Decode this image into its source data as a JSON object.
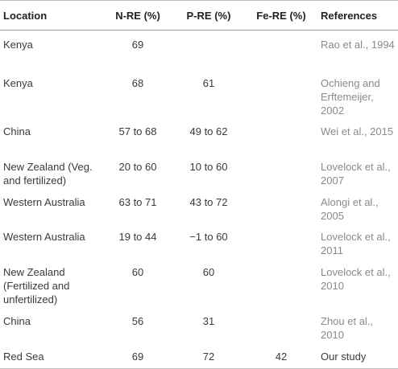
{
  "table": {
    "headers": [
      "Location",
      "N-RE (%)",
      "P-RE (%)",
      "Fe-RE (%)",
      "References"
    ],
    "rows": [
      {
        "location": "Kenya",
        "n_re": "69",
        "p_re": "",
        "fe_re": "",
        "ref": "Rao et al., 1994"
      },
      {
        "location": "Kenya",
        "n_re": "68",
        "p_re": "61",
        "fe_re": "",
        "ref": "Ochieng and Erftemeijer, 2002"
      },
      {
        "location": "China",
        "n_re": "57 to 68",
        "p_re": "49 to 62",
        "fe_re": "",
        "ref": "Wei et al., 2015"
      },
      {
        "location": "New Zealand (Veg. and fertilized)",
        "n_re": "20 to 60",
        "p_re": "10 to 60",
        "fe_re": "",
        "ref": "Lovelock et al., 2007"
      },
      {
        "location": "Western Australia",
        "n_re": "63 to 71",
        "p_re": "43 to 72",
        "fe_re": "",
        "ref": "Alongi et al., 2005"
      },
      {
        "location": "Western Australia",
        "n_re": "19 to 44",
        "p_re": "−1 to 60",
        "fe_re": "",
        "ref": "Lovelock et al., 2011"
      },
      {
        "location": "New Zealand (Fertilized and unfertilized)",
        "n_re": "60",
        "p_re": "60",
        "fe_re": "",
        "ref": "Lovelock et al., 2010"
      },
      {
        "location": "China",
        "n_re": "56",
        "p_re": "31",
        "fe_re": "",
        "ref": "Zhou et al., 2010"
      },
      {
        "location": "Red Sea",
        "n_re": "69",
        "p_re": "72",
        "fe_re": "42",
        "ref": "Our study"
      }
    ]
  }
}
